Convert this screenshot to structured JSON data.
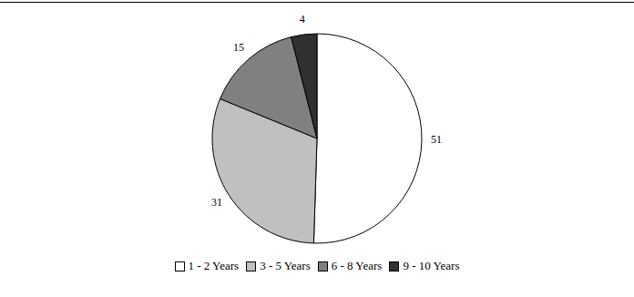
{
  "chart_data": {
    "type": "pie",
    "categories": [
      "1 - 2 Years",
      "3 - 5 Years",
      "6 - 8 Years",
      "9 - 10 Years"
    ],
    "values": [
      51,
      31,
      15,
      4
    ],
    "colors": [
      "#ffffff",
      "#c0c0c0",
      "#808080",
      "#303030"
    ],
    "data_labels": true,
    "legend": "bottom"
  }
}
